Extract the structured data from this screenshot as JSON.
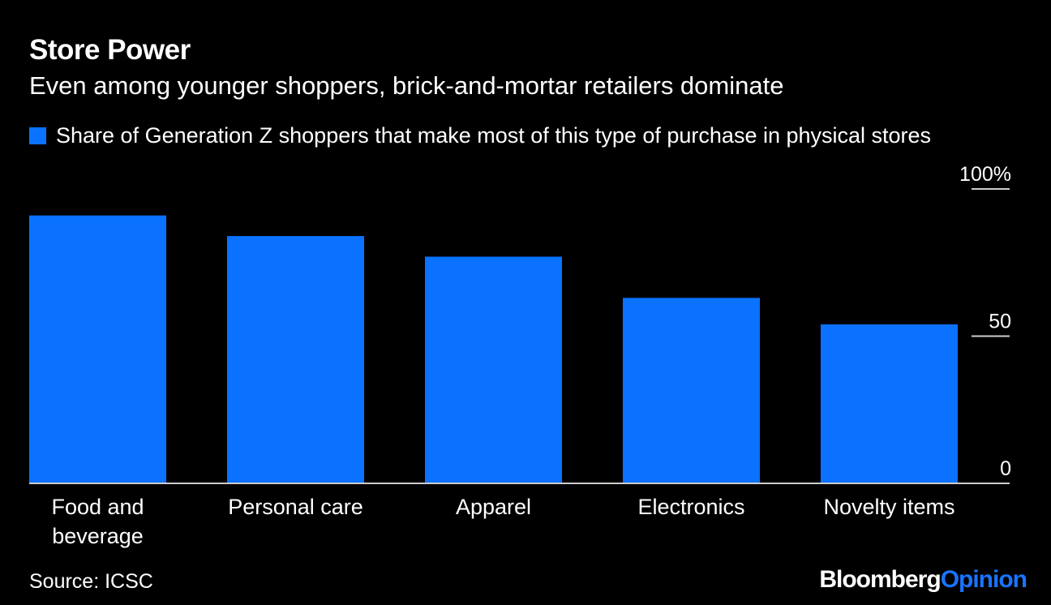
{
  "header": {
    "title": "Store Power",
    "subtitle": "Even among younger shoppers, brick-and-mortar retailers dominate"
  },
  "footer": {
    "source": "Source: ICSC",
    "logo_part1": "Bloomberg",
    "logo_part2": "Opinion"
  },
  "colors": {
    "bar": "#0a72ff",
    "background": "#000000",
    "text": "#ffffff",
    "axis": "#cccccc"
  },
  "chart_data": {
    "type": "bar",
    "title": "Store Power",
    "subtitle": "Even among younger shoppers, brick-and-mortar retailers dominate",
    "categories": [
      "Food and beverage",
      "Personal care",
      "Apparel",
      "Electronics",
      "Novelty items"
    ],
    "category_lines": [
      [
        "Food and",
        "beverage"
      ],
      [
        "Personal care"
      ],
      [
        "Apparel"
      ],
      [
        "Electronics"
      ],
      [
        "Novelty items"
      ]
    ],
    "series": [
      {
        "name": "Share of Generation Z shoppers that make most of this type of purchase in physical stores",
        "values": [
          91,
          84,
          77,
          63,
          54
        ]
      }
    ],
    "ylim": [
      0,
      100
    ],
    "yticks": [
      0,
      50,
      100
    ],
    "ytick_labels": [
      "0",
      "50",
      "100%"
    ],
    "y_axis_position": "right",
    "legend_position": "top-left",
    "grid": false
  }
}
